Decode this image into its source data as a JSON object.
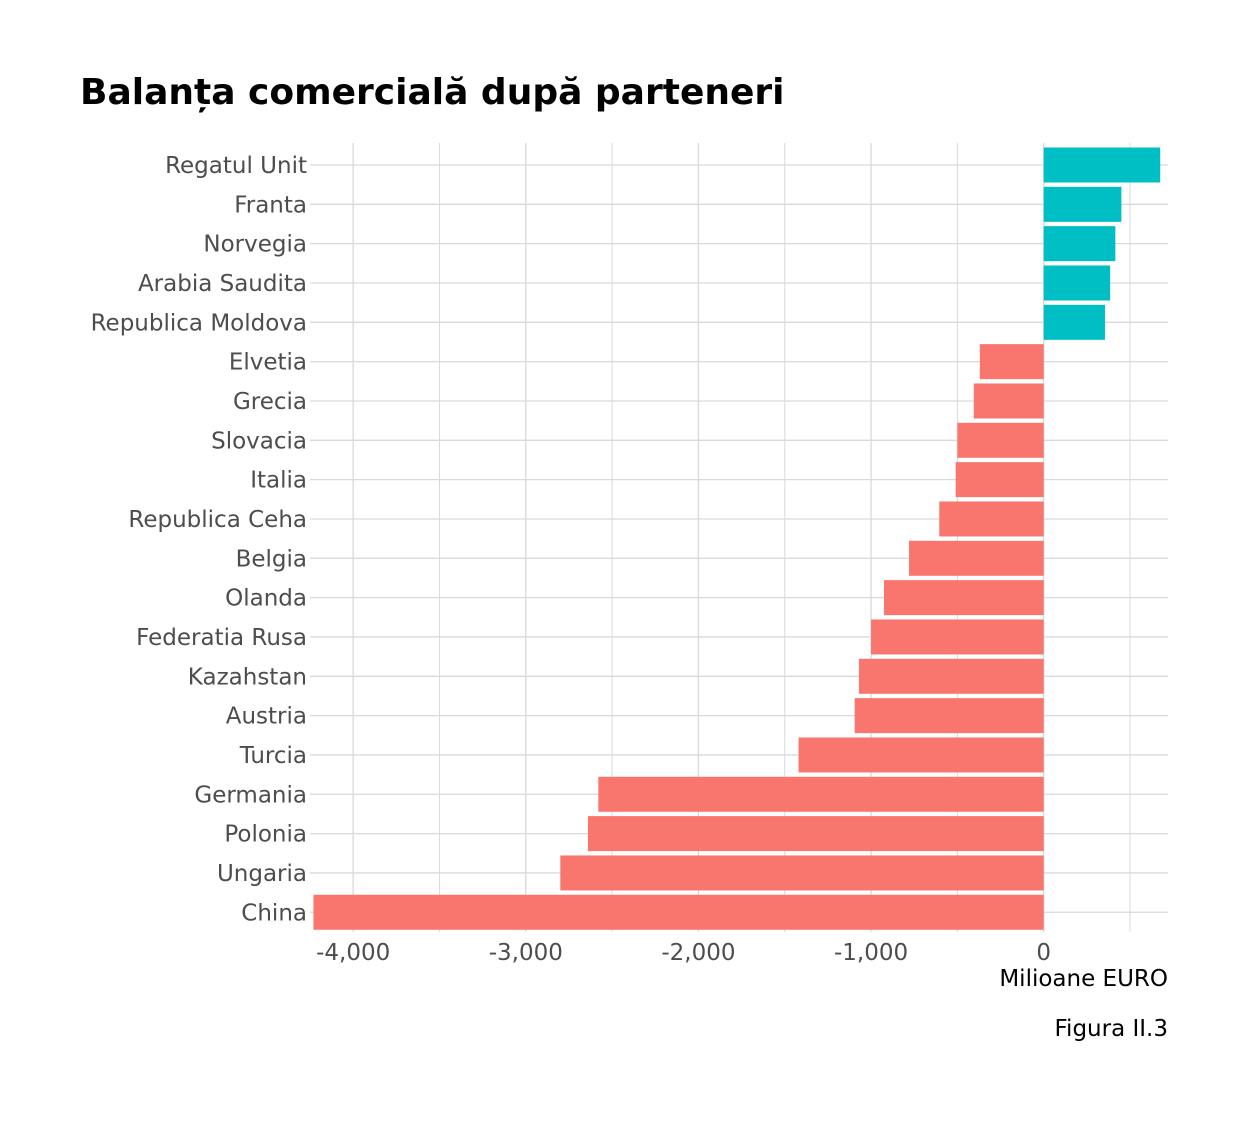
{
  "title": "Balanța comercială după parteneri",
  "caption": "Figura II.3",
  "colors": {
    "positive": "#00BFC4",
    "negative": "#F8766D",
    "grid": "#d9d9d9",
    "tick_text": "#4d4d4d"
  },
  "chart_data": {
    "type": "bar",
    "orientation": "horizontal",
    "xlabel": "Milioane EURO",
    "ylabel": "",
    "xlim": [
      -4250,
      720
    ],
    "x_ticks": [
      -4000,
      -3000,
      -2000,
      -1000,
      0
    ],
    "x_tick_labels": [
      "-4,000",
      "-3,000",
      "-2,000",
      "-1,000",
      "0"
    ],
    "grid": true,
    "legend": "none",
    "categories": [
      "Regatul Unit",
      "Franta",
      "Norvegia",
      "Arabia Saudita",
      "Republica Moldova",
      "Elvetia",
      "Grecia",
      "Slovacia",
      "Italia",
      "Republica Ceha",
      "Belgia",
      "Olanda",
      "Federatia Rusa",
      "Kazahstan",
      "Austria",
      "Turcia",
      "Germania",
      "Polonia",
      "Ungaria",
      "China"
    ],
    "values": [
      675,
      450,
      415,
      385,
      355,
      -370,
      -405,
      -500,
      -510,
      -605,
      -780,
      -925,
      -1000,
      -1070,
      -1095,
      -1420,
      -2580,
      -2640,
      -2800,
      -4230
    ]
  }
}
